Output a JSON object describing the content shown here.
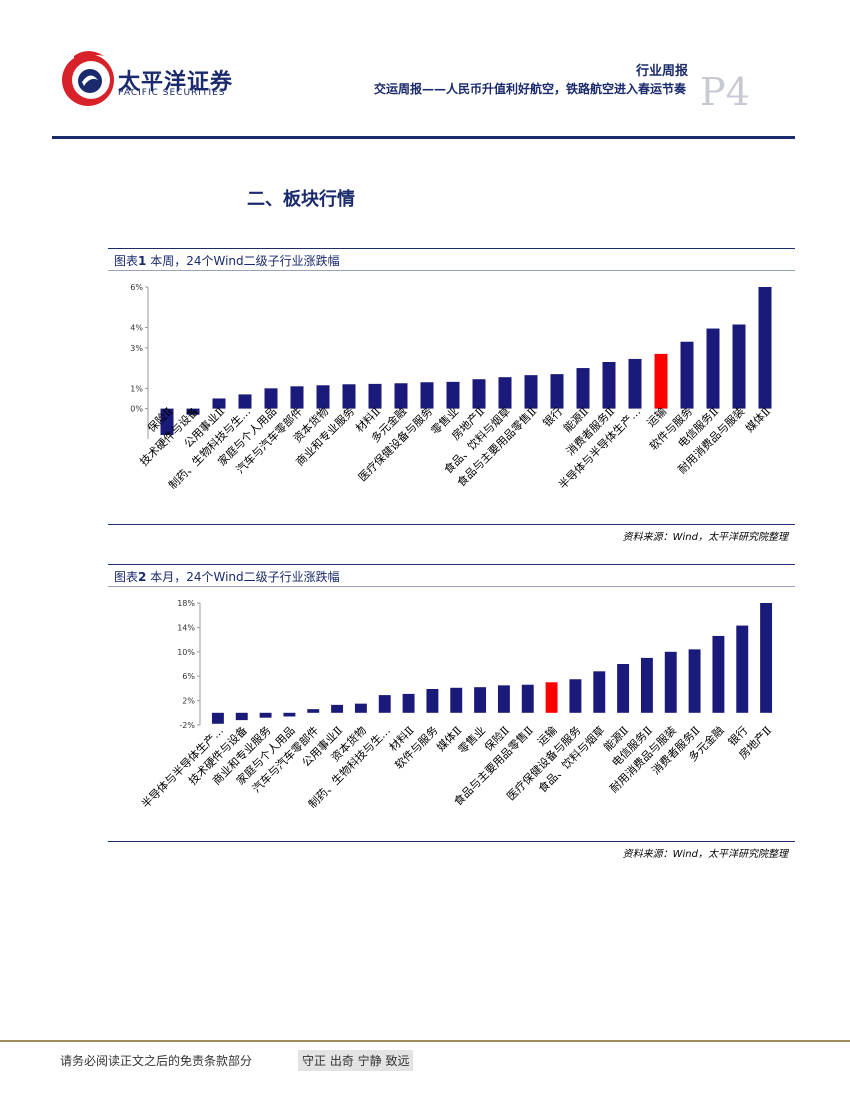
{
  "header": {
    "logo_cn": "太平洋证券",
    "logo_en": "PACIFIC SECURITIES",
    "report_type": "行业周报",
    "report_title": "交运周报——人民币升值利好航空，铁路航空进入春运节奏",
    "page_number": "P4"
  },
  "section_title": "二、板块行情",
  "colors": {
    "brand": "#1a2a6c",
    "bar": "#1a1a7a",
    "highlight": "#ff0000",
    "logo_red": "#d7222a"
  },
  "figure1": {
    "caption_prefix": "图表",
    "caption_num": "1",
    "caption_text": "本周，24个Wind二级子行业涨跌幅",
    "source": "资料来源：Wind，太平洋研究院整理"
  },
  "figure2": {
    "caption_prefix": "图表",
    "caption_num": "2",
    "caption_text": "本月，24个Wind二级子行业涨跌幅",
    "source": "资料来源：Wind，太平洋研究院整理"
  },
  "chart_data": [
    {
      "type": "bar",
      "categories": [
        "保险Ⅱ",
        "技术硬件与设备",
        "公用事业Ⅱ",
        "制药、生物科技与生…",
        "家庭与个人用品",
        "汽车与汽车零部件",
        "资本货物",
        "商业和专业服务",
        "材料Ⅱ",
        "多元金融",
        "医疗保健设备与服务",
        "零售业",
        "房地产Ⅱ",
        "食品、饮料与烟草",
        "食品与主要用品零售Ⅱ",
        "银行",
        "能源Ⅱ",
        "消费者服务Ⅱ",
        "半导体与半导体生产…",
        "运输",
        "软件与服务",
        "电信服务Ⅱ",
        "耐用消费品与服装",
        "媒体Ⅱ"
      ],
      "values": [
        -1.3,
        -0.3,
        0.5,
        0.7,
        1.0,
        1.1,
        1.15,
        1.2,
        1.22,
        1.25,
        1.3,
        1.32,
        1.45,
        1.55,
        1.65,
        1.7,
        2.0,
        2.3,
        2.45,
        2.7,
        3.3,
        3.95,
        4.15,
        6.0
      ],
      "highlight_category": "运输",
      "ytick_labels": [
        "6%",
        "4%",
        "3%",
        "1%",
        "0%"
      ],
      "ytick_values": [
        6,
        4,
        3,
        1,
        0
      ],
      "ylim": [
        -1.5,
        6
      ],
      "title": "",
      "xlabel": "",
      "ylabel": ""
    },
    {
      "type": "bar",
      "categories": [
        "半导体与半导体生产…",
        "技术硬件与设备",
        "商业和专业服务",
        "家庭与个人用品",
        "汽车与汽车零部件",
        "公用事业Ⅱ",
        "资本货物",
        "制药、生物科技与生…",
        "材料Ⅱ",
        "软件与服务",
        "媒体Ⅱ",
        "零售业",
        "保险Ⅱ",
        "食品与主要用品零售Ⅱ",
        "运输",
        "医疗保健设备与服务",
        "食品、饮料与烟草",
        "能源Ⅱ",
        "电信服务Ⅱ",
        "耐用消费品与服装",
        "消费者服务Ⅱ",
        "多元金融",
        "银行",
        "房地产Ⅱ"
      ],
      "values": [
        -1.8,
        -1.2,
        -0.8,
        -0.6,
        0.6,
        1.3,
        1.5,
        2.9,
        3.1,
        3.9,
        4.1,
        4.2,
        4.5,
        4.6,
        5.0,
        5.5,
        6.8,
        8.0,
        9.0,
        10.0,
        10.4,
        12.6,
        14.3,
        18.0
      ],
      "highlight_category": "运输",
      "ytick_labels": [
        "18%",
        "14%",
        "10%",
        "6%",
        "2%",
        "-2%"
      ],
      "ytick_values": [
        18,
        14,
        10,
        6,
        2,
        -2
      ],
      "ylim": [
        -2,
        18
      ],
      "title": "",
      "xlabel": "",
      "ylabel": ""
    }
  ],
  "footer": {
    "disclaimer": "请务必阅读正文之后的免责条款部分",
    "motto": "守正 出奇 宁静 致远"
  }
}
